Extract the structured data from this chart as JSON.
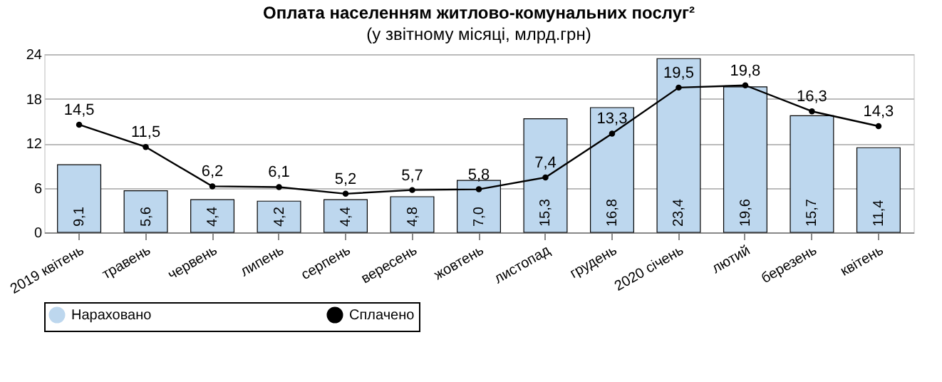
{
  "chart_data": {
    "type": "bar",
    "title": "Оплата населенням житлово-комунальних послуг²",
    "subtitle": "(у звітному місяці, млрд.грн)",
    "categories": [
      "2019 квітень",
      "травень",
      "червень",
      "липень",
      "серпень",
      "вересень",
      "жовтень",
      "листопад",
      "грудень",
      "2020 січень",
      "лютий",
      "березень",
      "квітень"
    ],
    "series": [
      {
        "name": "Нараховано",
        "type": "bar",
        "color": "#bdd7ee",
        "values": [
          9.1,
          5.6,
          4.4,
          4.2,
          4.4,
          4.8,
          7.0,
          15.3,
          16.8,
          23.4,
          19.6,
          15.7,
          11.4
        ],
        "value_labels": [
          "9,1",
          "5,6",
          "4,4",
          "4,2",
          "4,4",
          "4,8",
          "7,0",
          "15,3",
          "16,8",
          "23,4",
          "19,6",
          "15,7",
          "11,4"
        ]
      },
      {
        "name": "Сплачено",
        "type": "line",
        "color": "#000000",
        "marker": "circle",
        "values": [
          14.5,
          11.5,
          6.2,
          6.1,
          5.2,
          5.7,
          5.8,
          7.4,
          13.3,
          19.5,
          19.8,
          16.3,
          14.3
        ],
        "value_labels": [
          "14,5",
          "11,5",
          "6,2",
          "6,1",
          "5,2",
          "5,7",
          "5,8",
          "7,4",
          "13,3",
          "19,5",
          "19,8",
          "16,3",
          "14,3"
        ]
      }
    ],
    "ylim": [
      0,
      24
    ],
    "yticks": [
      0,
      6,
      12,
      18,
      24
    ],
    "grid": "y",
    "legend": "bottom"
  }
}
